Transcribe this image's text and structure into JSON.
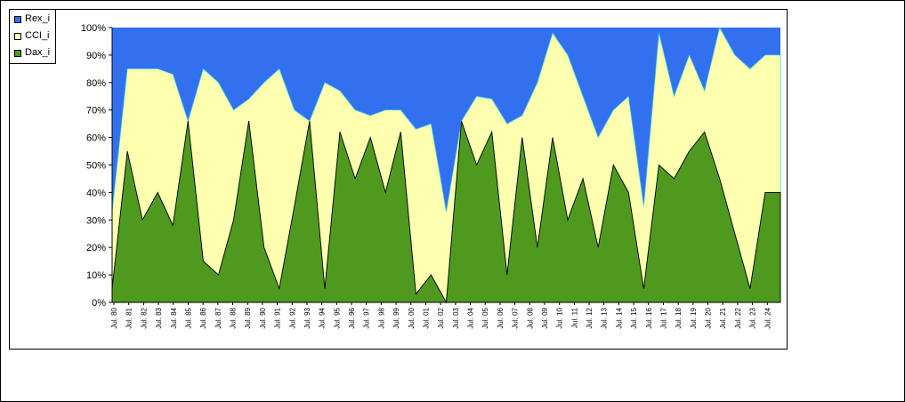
{
  "chart_data": {
    "type": "area",
    "stacked": true,
    "percent": true,
    "title": "",
    "xlabel": "",
    "ylabel": "",
    "ylim": [
      0,
      100
    ],
    "y_ticks": [
      "0%",
      "10%",
      "20%",
      "30%",
      "40%",
      "50%",
      "60%",
      "70%",
      "80%",
      "90%",
      "100%"
    ],
    "x_tick_labels": [
      "Jul. 80",
      "Jul. 81",
      "Jul. 82",
      "Jul. 83",
      "Jul. 84",
      "Jul. 85",
      "Jul. 86",
      "Jul. 87",
      "Jul. 88",
      "Jul. 89",
      "Jul. 90",
      "Jul. 91",
      "Jul. 92",
      "Jul. 93",
      "Jul. 94",
      "Jul. 95",
      "Jul. 96",
      "Jul. 97",
      "Jul. 98",
      "Jul. 99",
      "Jul. 00",
      "Jul. 01",
      "Jul. 02",
      "Jul. 03",
      "Jul. 04",
      "Jul. 05",
      "Jul. 06",
      "Jul. 07",
      "Jul. 08",
      "Jul. 09",
      "Jul. 10",
      "Jul. 11",
      "Jul. 12",
      "Jul. 13",
      "Jul. 14",
      "Jul. 15",
      "Jul. 16",
      "Jul. 17",
      "Jul. 18",
      "Jul. 19",
      "Jul. 20",
      "Jul. 21",
      "Jul. 22",
      "Jul. 23",
      "Jul. 24"
    ],
    "legend_position": "top-left",
    "grid": false,
    "series": [
      {
        "name": "Rex_i",
        "color": "#3370f0"
      },
      {
        "name": "CCI_i",
        "color": "#ffffb0"
      },
      {
        "name": "Dax_i",
        "color": "#4f9a1e"
      }
    ],
    "x": [
      "Jul. 80",
      "Jul. 81",
      "Jul. 82",
      "Jul. 83",
      "Jul. 84",
      "Jul. 85",
      "Jul. 86",
      "Jul. 87",
      "Jul. 88",
      "Jul. 89",
      "Jul. 90",
      "Jul. 91",
      "Jul. 92",
      "Jul. 93",
      "Jul. 94",
      "Jul. 95",
      "Jul. 96",
      "Jul. 97",
      "Jul. 98",
      "Jul. 99",
      "Jul. 00",
      "Jul. 01",
      "Jul. 02",
      "Jul. 03",
      "Jul. 04",
      "Jul. 05",
      "Jul. 06",
      "Jul. 07",
      "Jul. 08",
      "Jul. 09",
      "Jul. 10",
      "Jul. 11",
      "Jul. 12",
      "Jul. 13",
      "Jul. 14",
      "Jul. 15",
      "Jul. 16",
      "Jul. 17",
      "Jul. 18",
      "Jul. 19",
      "Jul. 20",
      "Jul. 21",
      "Jul. 22",
      "Jul. 23",
      "Jul. 24"
    ],
    "dax_pct": [
      5,
      55,
      30,
      40,
      28,
      66,
      15,
      10,
      30,
      66,
      20,
      5,
      35,
      66,
      5,
      62,
      45,
      60,
      40,
      62,
      3,
      10,
      0,
      66,
      50,
      62,
      10,
      60,
      20,
      60,
      30,
      45,
      20,
      50,
      40,
      5,
      50,
      45,
      55,
      62,
      45,
      25,
      5,
      40,
      40
    ],
    "cci_pct": [
      28,
      30,
      55,
      45,
      55,
      0,
      70,
      70,
      40,
      8,
      60,
      80,
      35,
      0,
      75,
      15,
      25,
      8,
      30,
      8,
      60,
      55,
      33,
      0,
      25,
      12,
      55,
      8,
      60,
      38,
      60,
      30,
      40,
      20,
      35,
      30,
      48,
      30,
      35,
      15,
      55,
      65,
      80,
      50,
      50
    ],
    "rex_pct": [
      67,
      15,
      15,
      15,
      17,
      34,
      15,
      20,
      30,
      26,
      20,
      15,
      30,
      34,
      20,
      23,
      30,
      32,
      30,
      30,
      37,
      35,
      67,
      34,
      25,
      26,
      35,
      32,
      20,
      2,
      10,
      25,
      40,
      30,
      25,
      65,
      2,
      25,
      10,
      23,
      0,
      10,
      15,
      10,
      10
    ]
  }
}
